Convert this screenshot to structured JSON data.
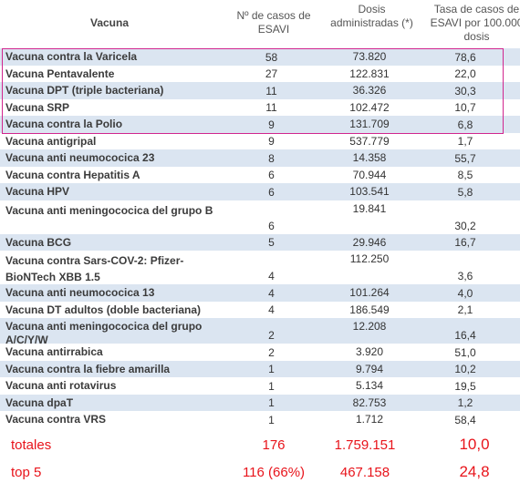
{
  "header": {
    "vaccine": "Vacuna",
    "cases": "Nº de casos de ESAVI",
    "doses": "Dosis administradas (*)",
    "rate": "Tasa de casos de ESAVI por 100.000 dosis"
  },
  "table": {
    "rows": [
      [
        "Vacuna contra la Varicela",
        "58",
        "73.820",
        "78,6"
      ],
      [
        "Vacuna Pentavalente",
        "27",
        "122.831",
        "22,0"
      ],
      [
        "Vacuna DPT (triple bacteriana)",
        "11",
        "36.326",
        "30,3"
      ],
      [
        "Vacuna SRP",
        "11",
        "102.472",
        "10,7"
      ],
      [
        "Vacuna contra la Polio",
        "9",
        "131.709",
        "6,8"
      ],
      [
        "Vacuna antigripal",
        "9",
        "537.779",
        "1,7"
      ],
      [
        "Vacuna anti neumococica 23",
        "8",
        "14.358",
        "55,7"
      ],
      [
        "Vacuna contra Hepatitis A",
        "6",
        "70.944",
        "8,5"
      ],
      [
        "Vacuna HPV",
        "6",
        "103.541",
        "5,8"
      ],
      [
        "Vacuna anti meningococica del grupo B",
        "6",
        "19.841",
        "30,2"
      ],
      [
        "Vacuna BCG",
        "5",
        "29.946",
        "16,7"
      ],
      [
        "Vacuna contra Sars-COV-2: Pfizer-BioNTech XBB 1.5",
        "4",
        "112.250",
        "3,6"
      ],
      [
        "Vacuna anti neumococica 13",
        "4",
        "101.264",
        "4,0"
      ],
      [
        "Vacuna DT adultos (doble bacteriana)",
        "4",
        "186.549",
        "2,1"
      ],
      [
        "Vacuna anti meningococica del grupo A/C/Y/W",
        "2",
        "12.208",
        "16,4"
      ],
      [
        "Vacuna antirrabica",
        "2",
        "3.920",
        "51,0"
      ],
      [
        "Vacuna contra la fiebre amarilla",
        "1",
        "9.794",
        "10,2"
      ],
      [
        "Vacuna anti rotavirus",
        "1",
        "5.134",
        "19,5"
      ],
      [
        "Vacuna dpaT",
        "1",
        "82.753",
        "1,2"
      ],
      [
        "Vacuna contra VRS",
        "1",
        "1.712",
        "58,4"
      ]
    ]
  },
  "totals": [
    [
      "totales",
      "176",
      "1.759.151",
      "10,0"
    ],
    [
      "top 5",
      "116 (66%)",
      "467.158",
      "24,8"
    ]
  ]
}
